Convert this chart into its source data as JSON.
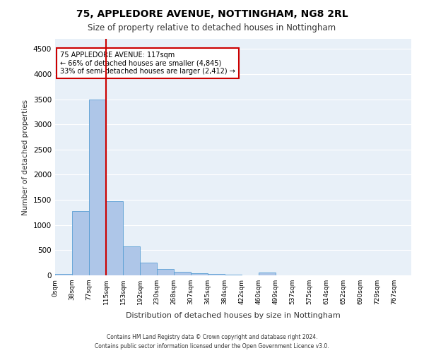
{
  "title1": "75, APPLEDORE AVENUE, NOTTINGHAM, NG8 2RL",
  "title2": "Size of property relative to detached houses in Nottingham",
  "xlabel": "Distribution of detached houses by size in Nottingham",
  "ylabel": "Number of detached properties",
  "bin_labels": [
    "0sqm",
    "38sqm",
    "77sqm",
    "115sqm",
    "153sqm",
    "192sqm",
    "230sqm",
    "268sqm",
    "307sqm",
    "345sqm",
    "384sqm",
    "422sqm",
    "460sqm",
    "499sqm",
    "537sqm",
    "575sqm",
    "614sqm",
    "652sqm",
    "690sqm",
    "729sqm",
    "767sqm"
  ],
  "bar_heights": [
    30,
    1270,
    3500,
    1480,
    575,
    250,
    120,
    75,
    45,
    25,
    15,
    0,
    50,
    0,
    0,
    0,
    0,
    0,
    0,
    0
  ],
  "bar_color": "#aec6e8",
  "bar_edge_color": "#5a9fd4",
  "background_color": "#e8f0f8",
  "grid_color": "#ffffff",
  "ylim": [
    0,
    4700
  ],
  "yticks": [
    0,
    500,
    1000,
    1500,
    2000,
    2500,
    3000,
    3500,
    4000,
    4500
  ],
  "annotation_title": "75 APPLEDORE AVENUE: 117sqm",
  "annotation_line1": "← 66% of detached houses are smaller (4,845)",
  "annotation_line2": "33% of semi-detached houses are larger (2,412) →",
  "annotation_box_color": "#ffffff",
  "annotation_box_edge": "#cc0000",
  "vline_color": "#cc0000",
  "vline_pos": 2.5,
  "footer1": "Contains HM Land Registry data © Crown copyright and database right 2024.",
  "footer2": "Contains public sector information licensed under the Open Government Licence v3.0."
}
